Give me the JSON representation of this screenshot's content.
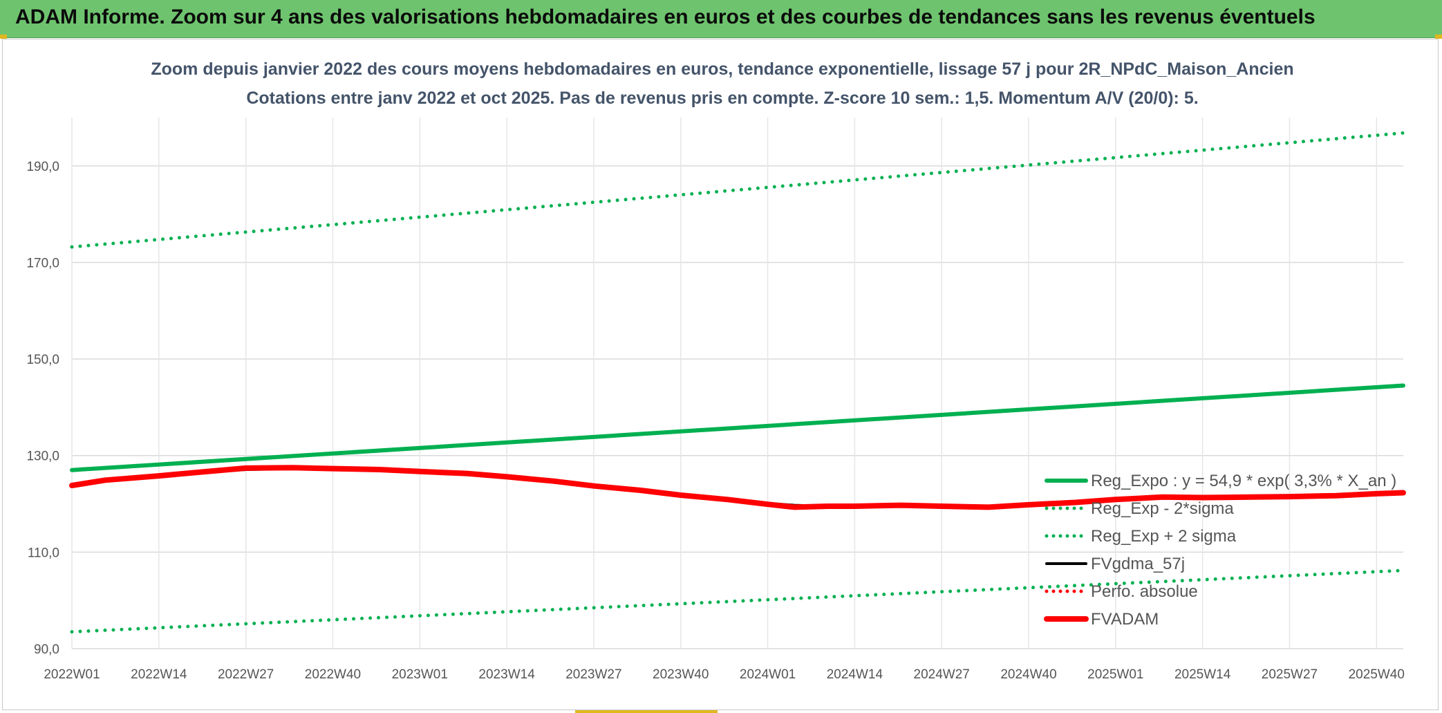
{
  "banner": {
    "title": "ADAM Informe. Zoom sur 4 ans des valorisations hebdomadaires en euros et des courbes de tendances sans les revenus éventuels"
  },
  "colors": {
    "banner_bg": "#6ec46e",
    "reg_expo": "#00b050",
    "fvadam": "#ff0000",
    "fvgdma": "#000000",
    "perfo": "#ff0000",
    "grid": "#d9d9d9"
  },
  "chart_data": {
    "type": "line",
    "title": "Zoom depuis janvier 2022 des cours moyens hebdomadaires en euros, tendance exponentielle, lissage 57 j pour 2R_NPdC_Maison_Ancien",
    "subtitle": "Cotations entre janv 2022 et oct 2025. Pas de revenus pris en compte. Z-score 10 sem.: 1,5. Momentum A/V (20/0): 5.",
    "xlabel": "",
    "ylabel": "",
    "categories": [
      "2022W01",
      "2022W14",
      "2022W27",
      "2022W40",
      "2023W01",
      "2023W14",
      "2023W27",
      "2023W40",
      "2024W01",
      "2024W14",
      "2024W27",
      "2024W40",
      "2025W01",
      "2025W14",
      "2025W27",
      "2025W40"
    ],
    "x_last": "2025W44",
    "y_ticks": [
      "90,0",
      "110,0",
      "130,0",
      "150,0",
      "170,0",
      "190,0"
    ],
    "ylim": [
      90,
      200
    ],
    "grid": true,
    "legend_position": "bottom-right",
    "series": [
      {
        "name": "Reg_Expo : y = 54,9 * exp( 3,3% * X_an )",
        "style": "solid-thick",
        "color": "#00b050",
        "x": [
          "2022W01",
          "2025W44"
        ],
        "y": [
          127.0,
          144.5
        ]
      },
      {
        "name": "Reg_Exp - 2*sigma",
        "style": "dotted",
        "color": "#00b050",
        "x": [
          "2022W01",
          "2025W44"
        ],
        "y": [
          93.5,
          106.2
        ]
      },
      {
        "name": "Reg_Exp + 2 sigma",
        "style": "dotted",
        "color": "#00b050",
        "x": [
          "2022W01",
          "2025W44"
        ],
        "y": [
          173.2,
          196.8
        ]
      },
      {
        "name": "FVgdma_57j",
        "style": "solid",
        "color": "#000000",
        "x": [
          "2022W01",
          "2022W06",
          "2022W14",
          "2022W22",
          "2022W27",
          "2022W34",
          "2022W40",
          "2022W47",
          "2023W01",
          "2023W08",
          "2023W14",
          "2023W21",
          "2023W27",
          "2023W34",
          "2023W40",
          "2023W47",
          "2024W01",
          "2024W05",
          "2024W10",
          "2024W14",
          "2024W21",
          "2024W27",
          "2024W34",
          "2024W40",
          "2024W47",
          "2025W01",
          "2025W08",
          "2025W14",
          "2025W21",
          "2025W27",
          "2025W34",
          "2025W40",
          "2025W44"
        ],
        "y": [
          124.0,
          124.8,
          125.7,
          126.6,
          127.1,
          127.3,
          127.3,
          127.1,
          126.7,
          126.3,
          125.8,
          124.8,
          123.9,
          123.0,
          122.0,
          121.0,
          120.1,
          119.7,
          119.5,
          119.6,
          119.8,
          119.6,
          119.5,
          119.8,
          120.4,
          120.9,
          121.2,
          121.3,
          121.3,
          121.4,
          121.7,
          122.1,
          122.4
        ]
      },
      {
        "name": "Perfo. absolue",
        "style": "dotted",
        "color": "#ff0000",
        "x": [],
        "y": []
      },
      {
        "name": "FVADAM",
        "style": "solid-thick",
        "color": "#ff0000",
        "x": [
          "2022W01",
          "2022W06",
          "2022W14",
          "2022W22",
          "2022W27",
          "2022W34",
          "2022W40",
          "2022W47",
          "2023W01",
          "2023W08",
          "2023W14",
          "2023W21",
          "2023W27",
          "2023W34",
          "2023W40",
          "2023W47",
          "2024W01",
          "2024W05",
          "2024W10",
          "2024W14",
          "2024W21",
          "2024W27",
          "2024W34",
          "2024W40",
          "2024W47",
          "2025W01",
          "2025W08",
          "2025W14",
          "2025W21",
          "2025W27",
          "2025W34",
          "2025W40",
          "2025W44"
        ],
        "y": [
          123.8,
          124.9,
          125.8,
          126.8,
          127.4,
          127.5,
          127.3,
          127.1,
          126.7,
          126.3,
          125.6,
          124.7,
          123.7,
          122.8,
          121.8,
          120.9,
          119.9,
          119.3,
          119.5,
          119.5,
          119.7,
          119.5,
          119.3,
          119.8,
          120.3,
          120.9,
          121.4,
          121.3,
          121.4,
          121.5,
          121.7,
          122.1,
          122.3
        ]
      }
    ]
  }
}
